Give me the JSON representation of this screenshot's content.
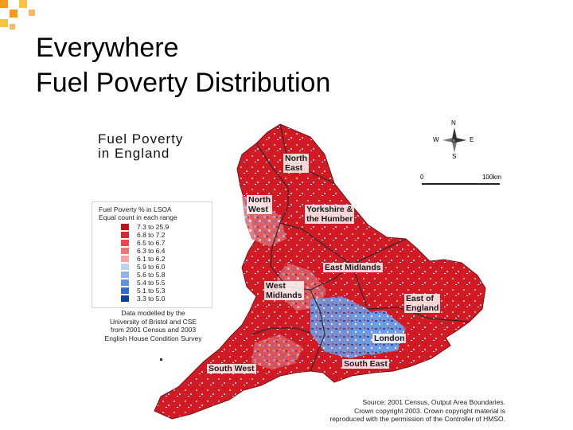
{
  "slide": {
    "title_line1": "Everywhere",
    "title_line2": "Fuel Poverty Distribution"
  },
  "map": {
    "title_line1": "Fuel Poverty",
    "title_line2": "in England",
    "legend": {
      "title_line1": "Fuel Poverty % in LSOA",
      "title_line2": "Equal count in each range",
      "items": [
        {
          "label": "7.3 to 25.9",
          "color": "#c0121b"
        },
        {
          "label": "6.8 to  7.2",
          "color": "#d6292e"
        },
        {
          "label": "6.5 to  6.7",
          "color": "#e8494d"
        },
        {
          "label": "6.3 to  6.4",
          "color": "#f17676"
        },
        {
          "label": "6.1 to  6.2",
          "color": "#f7a4a4"
        },
        {
          "label": "5.9 to  6.0",
          "color": "#bcd0ef"
        },
        {
          "label": "5.6 to  5.8",
          "color": "#8fb4ea"
        },
        {
          "label": "5.4 to  5.5",
          "color": "#5f92df"
        },
        {
          "label": "5.1 to  5.3",
          "color": "#2f6bcc"
        },
        {
          "label": "3.3 to  5.0",
          "color": "#133e9a"
        }
      ]
    },
    "model_note": [
      "Data modelled by the",
      "University of Bristol and CSE",
      "from 2001 Census and 2003",
      "English House Condition Survey"
    ],
    "source_note": [
      "Source: 2001 Census, Output Area Boundaries.",
      "Crown copyright 2003. Crown copyright material is",
      "reproduced with the permission of the Controller of HMSO."
    ],
    "scale": {
      "start": "0",
      "end": "100km"
    },
    "compass": {
      "n": "N",
      "e": "E",
      "s": "S",
      "w": "W"
    },
    "regions": {
      "north_east_1": "North",
      "north_east_2": "East",
      "north_west_1": "North",
      "north_west_2": "West",
      "yorkshire_1": "Yorkshire &",
      "yorkshire_2": "the Humber",
      "east_midlands": "East Midlands",
      "west_midlands_1": "West",
      "west_midlands_2": "Midlands",
      "east_1": "East of",
      "east_2": "England",
      "london": "London",
      "south_east": "South East",
      "south_west": "South West"
    },
    "colors": {
      "high_red": "#c0121b",
      "low_blue": "#133e9a",
      "deco_orange": "#f59a1b",
      "deco_yellow": "#f5c542"
    }
  }
}
